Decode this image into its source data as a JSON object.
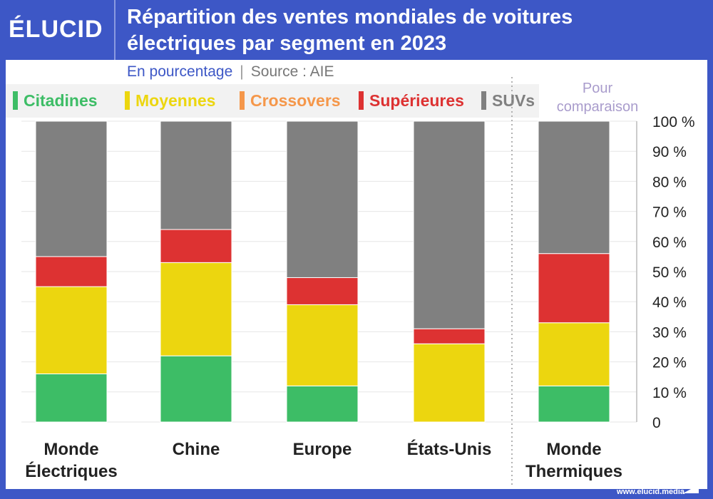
{
  "header": {
    "logo": "ÉLUCID",
    "title_line1": "Répartition des ventes mondiales de voitures",
    "title_line2": "électriques par segment en 2023"
  },
  "subtitle": {
    "unit": "En pourcentage",
    "separator": "|",
    "source": "Source : AIE"
  },
  "comparison_note": {
    "line1": "Pour",
    "line2": "comparaison"
  },
  "footer": "www.elucid.media",
  "chart_data": {
    "type": "bar",
    "stacked": true,
    "categories": [
      "Monde Électriques",
      "Chine",
      "Europe",
      "États-Unis",
      "Monde Thermiques"
    ],
    "category_lines": [
      [
        "Monde",
        "Électriques"
      ],
      [
        "Chine"
      ],
      [
        "Europe"
      ],
      [
        "États-Unis"
      ],
      [
        "Monde",
        "Thermiques"
      ]
    ],
    "series": [
      {
        "name": "Citadines",
        "color": "#3dbd66",
        "values": [
          16,
          22,
          12,
          0,
          12
        ]
      },
      {
        "name": "Moyennes",
        "color": "#ecd60f",
        "values": [
          29,
          31,
          27,
          26,
          21
        ]
      },
      {
        "name": "Crossovers",
        "color": "#f5974a",
        "values": [
          0,
          0,
          0,
          0,
          0
        ]
      },
      {
        "name": "Supérieures",
        "color": "#dd3232",
        "values": [
          10,
          11,
          9,
          5,
          23
        ]
      },
      {
        "name": "SUVs",
        "color": "#808080",
        "values": [
          45,
          36,
          52,
          69,
          44
        ]
      }
    ],
    "ylim": [
      0,
      100
    ],
    "yticks": [
      "0",
      "10 %",
      "20 %",
      "30 %",
      "40 %",
      "50 %",
      "60 %",
      "70 %",
      "80 %",
      "90 %",
      "100 %"
    ],
    "grid": true,
    "legend": "top",
    "yaxis_side": "right"
  }
}
